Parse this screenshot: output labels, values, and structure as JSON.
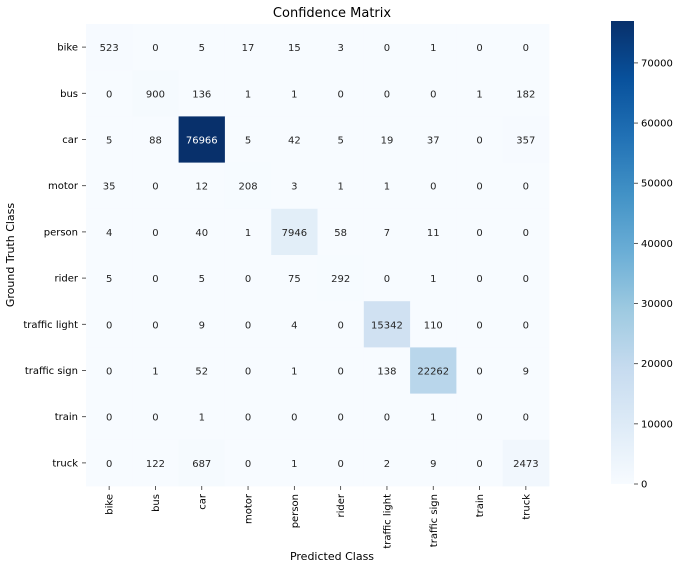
{
  "chart_data": {
    "type": "heatmap",
    "title": "Confidence Matrix",
    "xlabel": "Predicted Class",
    "ylabel": "Ground Truth Class",
    "x_categories": [
      "bike",
      "bus",
      "car",
      "motor",
      "person",
      "rider",
      "traffic light",
      "traffic sign",
      "train",
      "truck"
    ],
    "y_categories": [
      "bike",
      "bus",
      "car",
      "motor",
      "person",
      "rider",
      "traffic light",
      "traffic sign",
      "train",
      "truck"
    ],
    "values": [
      [
        523,
        0,
        5,
        17,
        15,
        3,
        0,
        1,
        0,
        0
      ],
      [
        0,
        900,
        136,
        1,
        1,
        0,
        0,
        0,
        1,
        182
      ],
      [
        5,
        88,
        76966,
        5,
        42,
        5,
        19,
        37,
        0,
        357
      ],
      [
        35,
        0,
        12,
        208,
        3,
        1,
        1,
        0,
        0,
        0
      ],
      [
        4,
        0,
        40,
        1,
        7946,
        58,
        7,
        11,
        0,
        0
      ],
      [
        5,
        0,
        5,
        0,
        75,
        292,
        0,
        1,
        0,
        0
      ],
      [
        0,
        0,
        9,
        0,
        4,
        0,
        15342,
        110,
        0,
        0
      ],
      [
        0,
        1,
        52,
        0,
        1,
        0,
        138,
        22262,
        0,
        9
      ],
      [
        0,
        0,
        1,
        0,
        0,
        0,
        0,
        1,
        0,
        0
      ],
      [
        0,
        122,
        687,
        0,
        1,
        0,
        2,
        9,
        0,
        2473
      ]
    ],
    "colorbar": {
      "min": 0,
      "max": 76966,
      "ticks": [
        0,
        10000,
        20000,
        30000,
        40000,
        50000,
        60000,
        70000
      ]
    },
    "colormap": [
      "#f7fbff",
      "#deebf7",
      "#c6dbef",
      "#9ecae1",
      "#6baed6",
      "#4292c6",
      "#2171b5",
      "#08519c",
      "#08306b"
    ]
  }
}
